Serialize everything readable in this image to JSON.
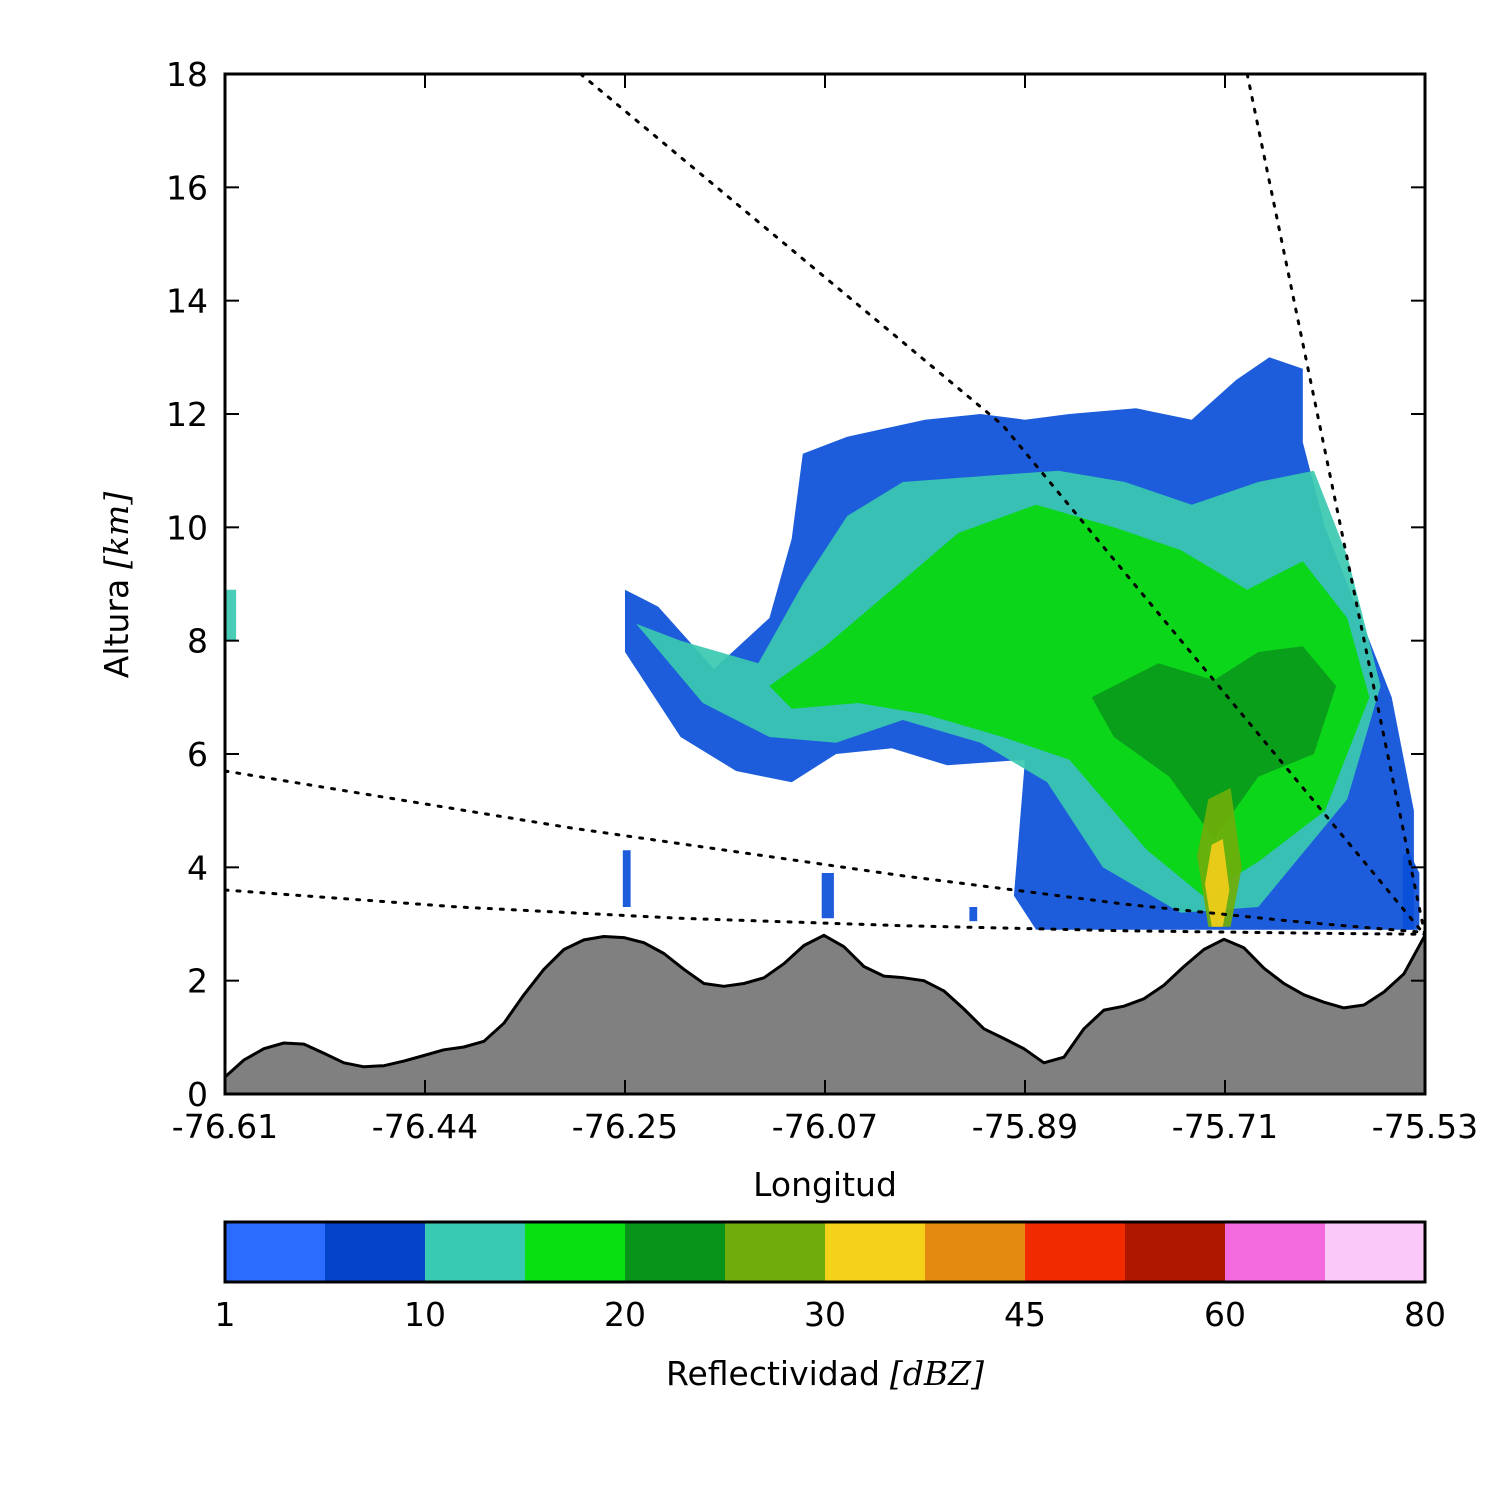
{
  "chart_data": {
    "type": "heatmap",
    "title": "",
    "xlabel": "Longitud",
    "ylabel": {
      "text": "Altura",
      "unit": "[km]"
    },
    "xlim": [
      -76.61,
      -75.53
    ],
    "ylim": [
      0,
      18
    ],
    "x_tick_labels": [
      "-76.61",
      "-76.44",
      "-76.25",
      "-76.07",
      "-75.89",
      "-75.71",
      "-75.53"
    ],
    "y_ticks": [
      0,
      2,
      4,
      6,
      8,
      10,
      12,
      14,
      16,
      18
    ],
    "terrain": {
      "fill_color": "#808080",
      "x": [
        -76.61,
        -76.593,
        -76.575,
        -76.557,
        -76.539,
        -76.521,
        -76.503,
        -76.485,
        -76.467,
        -76.449,
        -76.431,
        -76.413,
        -76.395,
        -76.377,
        -76.359,
        -76.341,
        -76.323,
        -76.305,
        -76.287,
        -76.269,
        -76.251,
        -76.233,
        -76.215,
        -76.197,
        -76.179,
        -76.161,
        -76.143,
        -76.125,
        -76.107,
        -76.089,
        -76.071,
        -76.053,
        -76.035,
        -76.017,
        -75.999,
        -75.981,
        -75.963,
        -75.945,
        -75.927,
        -75.909,
        -75.891,
        -75.873,
        -75.855,
        -75.837,
        -75.819,
        -75.801,
        -75.783,
        -75.765,
        -75.747,
        -75.729,
        -75.711,
        -75.693,
        -75.675,
        -75.657,
        -75.639,
        -75.621,
        -75.603,
        -75.585,
        -75.567,
        -75.549,
        -75.53
      ],
      "y": [
        0.3,
        0.6,
        0.8,
        0.9,
        0.88,
        0.72,
        0.55,
        0.48,
        0.5,
        0.58,
        0.68,
        0.78,
        0.83,
        0.93,
        1.25,
        1.75,
        2.2,
        2.55,
        2.72,
        2.78,
        2.76,
        2.67,
        2.48,
        2.2,
        1.95,
        1.9,
        1.95,
        2.05,
        2.3,
        2.62,
        2.8,
        2.6,
        2.25,
        2.08,
        2.05,
        2.0,
        1.82,
        1.5,
        1.15,
        0.98,
        0.8,
        0.55,
        0.65,
        1.15,
        1.48,
        1.55,
        1.68,
        1.92,
        2.25,
        2.55,
        2.73,
        2.58,
        2.22,
        1.95,
        1.75,
        1.62,
        1.52,
        1.57,
        1.8,
        2.12,
        2.8
      ]
    },
    "beam_lines": [
      {
        "x": [
          -76.29,
          -75.91,
          -75.53
        ],
        "y": [
          18.0,
          11.8,
          2.8
        ]
      },
      {
        "x": [
          -75.69,
          -75.53
        ],
        "y": [
          18.0,
          2.8
        ]
      },
      {
        "x": [
          -76.61,
          -76.3,
          -76.0,
          -75.8,
          -75.65,
          -75.53
        ],
        "y": [
          5.7,
          4.7,
          3.85,
          3.35,
          3.05,
          2.85
        ]
      },
      {
        "x": [
          -76.61,
          -76.4,
          -76.2,
          -76.0,
          -75.8,
          -75.6,
          -75.53
        ],
        "y": [
          3.6,
          3.3,
          3.1,
          2.97,
          2.88,
          2.83,
          2.82
        ]
      }
    ],
    "reflectivity_regions": [
      {
        "level_dBZ": 1,
        "fill": "#0a4fd8",
        "x": [
          -76.25,
          -76.22,
          -76.17,
          -76.12,
          -76.1,
          -76.09,
          -76.05,
          -75.98,
          -75.93,
          -75.89,
          -75.85,
          -75.79,
          -75.74,
          -75.7,
          -75.67,
          -75.64,
          -75.64,
          -75.62,
          -75.59,
          -75.56,
          -75.54,
          -75.54,
          -75.6,
          -75.68,
          -75.76,
          -75.83,
          -75.88,
          -75.9,
          -75.89,
          -75.96,
          -76.01,
          -76.06,
          -76.1,
          -76.15,
          -76.2,
          -76.25,
          -76.25
        ],
        "y": [
          8.9,
          8.6,
          7.5,
          8.4,
          9.8,
          11.3,
          11.6,
          11.9,
          12.0,
          11.9,
          12.0,
          12.1,
          11.9,
          12.6,
          13.0,
          12.8,
          11.5,
          10.0,
          8.5,
          7.0,
          5.0,
          2.9,
          2.9,
          2.9,
          2.9,
          2.9,
          2.9,
          3.5,
          5.9,
          5.8,
          6.1,
          6.0,
          5.5,
          5.7,
          6.3,
          7.8,
          8.9
        ]
      },
      {
        "level_dBZ": 10,
        "fill": "#39c9b0",
        "x": [
          -76.24,
          -76.2,
          -76.13,
          -76.09,
          -76.05,
          -76.0,
          -75.93,
          -75.86,
          -75.8,
          -75.74,
          -75.68,
          -75.63,
          -75.6,
          -75.57,
          -75.6,
          -75.68,
          -75.75,
          -75.82,
          -75.87,
          -75.93,
          -76.0,
          -76.06,
          -76.12,
          -76.18,
          -76.24
        ],
        "y": [
          8.3,
          8.0,
          7.6,
          9.0,
          10.2,
          10.8,
          10.9,
          11.0,
          10.8,
          10.4,
          10.8,
          11.0,
          9.5,
          7.2,
          5.2,
          3.3,
          3.2,
          4.0,
          5.5,
          6.2,
          6.6,
          6.2,
          6.3,
          6.9,
          8.3
        ]
      },
      {
        "level_dBZ": 20,
        "fill": "#08d80c",
        "x": [
          -76.12,
          -76.07,
          -76.01,
          -75.95,
          -75.88,
          -75.81,
          -75.75,
          -75.69,
          -75.64,
          -75.6,
          -75.58,
          -75.62,
          -75.68,
          -75.73,
          -75.78,
          -75.85,
          -75.91,
          -75.98,
          -76.04,
          -76.1,
          -76.12
        ],
        "y": [
          7.2,
          7.9,
          8.9,
          9.9,
          10.4,
          10.0,
          9.6,
          8.9,
          9.4,
          8.4,
          7.0,
          5.0,
          4.1,
          3.5,
          4.3,
          5.9,
          6.3,
          6.7,
          6.9,
          6.8,
          7.2
        ]
      },
      {
        "level_dBZ": 25,
        "fill": "#0a9a1a",
        "x": [
          -75.83,
          -75.77,
          -75.72,
          -75.68,
          -75.64,
          -75.61,
          -75.63,
          -75.68,
          -75.72,
          -75.76,
          -75.81,
          -75.83
        ],
        "y": [
          7.0,
          7.6,
          7.3,
          7.8,
          7.9,
          7.2,
          6.0,
          5.6,
          4.5,
          5.6,
          6.3,
          7.0
        ]
      },
      {
        "level_dBZ": 30,
        "fill": "#6fae0a",
        "x": [
          -75.725,
          -75.705,
          -75.695,
          -75.705,
          -75.725,
          -75.735,
          -75.725
        ],
        "y": [
          5.2,
          5.4,
          4.0,
          2.95,
          2.95,
          4.2,
          5.2
        ]
      },
      {
        "level_dBZ": 35,
        "fill": "#f2cd1a",
        "x": [
          -75.722,
          -75.712,
          -75.706,
          -75.712,
          -75.722,
          -75.728,
          -75.722
        ],
        "y": [
          4.4,
          4.5,
          3.6,
          2.95,
          2.95,
          3.7,
          4.4
        ]
      },
      {
        "level_dBZ": 10,
        "fill": "#39c9b0",
        "x": [
          -76.61,
          -76.6,
          -76.6,
          -76.61
        ],
        "y": [
          8.9,
          8.9,
          8.0,
          8.0
        ]
      },
      {
        "level_dBZ": 1,
        "fill": "#0a4fd8",
        "x": [
          -76.252,
          -76.245,
          -76.245,
          -76.252
        ],
        "y": [
          4.3,
          4.3,
          3.3,
          3.3
        ]
      },
      {
        "level_dBZ": 1,
        "fill": "#0a4fd8",
        "x": [
          -76.073,
          -76.062,
          -76.062,
          -76.073
        ],
        "y": [
          3.9,
          3.9,
          3.1,
          3.1
        ]
      },
      {
        "level_dBZ": 1,
        "fill": "#0a4fd8",
        "x": [
          -75.94,
          -75.933,
          -75.933,
          -75.94
        ],
        "y": [
          3.3,
          3.3,
          3.05,
          3.05
        ]
      },
      {
        "level_dBZ": 1,
        "fill": "#0a4fd8",
        "x": [
          -75.55,
          -75.545,
          -75.535,
          -75.535,
          -75.55
        ],
        "y": [
          4.2,
          4.3,
          3.9,
          2.9,
          2.9
        ]
      }
    ],
    "colorbar": {
      "label": "Reflectividad",
      "unit": "[dBZ]",
      "tick_labels": [
        "1",
        "10",
        "20",
        "30",
        "45",
        "60",
        "80"
      ],
      "colors": [
        "#2b6cff",
        "#0444c8",
        "#37c9b1",
        "#08e010",
        "#079419",
        "#6ead0b",
        "#f5d21a",
        "#e58a10",
        "#f22a00",
        "#ae1801",
        "#f26ade",
        "#fac8f8"
      ]
    }
  }
}
